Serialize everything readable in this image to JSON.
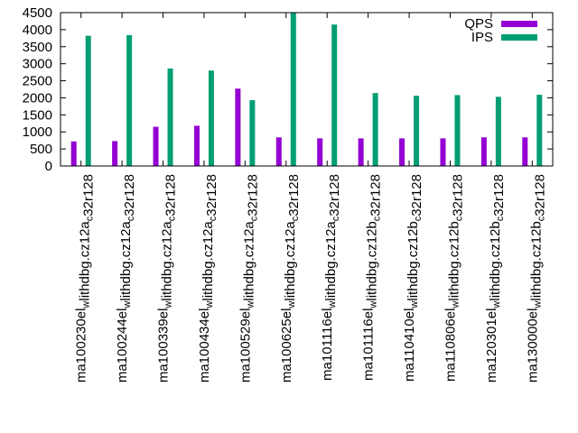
{
  "chart_data": {
    "type": "bar",
    "title": "",
    "xlabel": "",
    "ylabel": "",
    "ylim": [
      0,
      4500
    ],
    "yticks": [
      0,
      500,
      1000,
      1500,
      2000,
      2500,
      3000,
      3500,
      4000,
      4500
    ],
    "grid": false,
    "legend_position": "top-right",
    "categories": [
      {
        "pre": "ma100230",
        "a": "el",
        "b": "lithdbg.cz12a",
        "c": "32r128"
      },
      {
        "pre": "ma100244",
        "a": "el",
        "b": "lithdbg.cz12a",
        "c": "32r128"
      },
      {
        "pre": "ma100339",
        "a": "el",
        "b": "lithdbg.cz12a",
        "c": "32r128"
      },
      {
        "pre": "ma100434",
        "a": "el",
        "b": "lithdbg.cz12a",
        "c": "32r128"
      },
      {
        "pre": "ma100529",
        "a": "el",
        "b": "lithdbg.cz12a",
        "c": "32r128"
      },
      {
        "pre": "ma100625",
        "a": "el",
        "b": "lithdbg.cz12a",
        "c": "32r128"
      },
      {
        "pre": "ma101116",
        "a": "el",
        "b": "lithdbg.cz12a",
        "c": "32r128"
      },
      {
        "pre": "ma101116",
        "a": "el",
        "b": "lithdbg.cz12b",
        "c": "32r128"
      },
      {
        "pre": "ma110410",
        "a": "el",
        "b": "lithdbg.cz12b",
        "c": "32r128"
      },
      {
        "pre": "ma110806",
        "a": "el",
        "b": "lithdbg.cz12b",
        "c": "32r128"
      },
      {
        "pre": "ma120301",
        "a": "el",
        "b": "lithdbg.cz12b",
        "c": "32r128"
      },
      {
        "pre": "ma130000",
        "a": "el",
        "b": "lithdbg.cz12b",
        "c": "32r128"
      }
    ],
    "subscript_char": "w",
    "subscript_char2": "c",
    "series": [
      {
        "name": "QPS",
        "color": "#9400d3",
        "values": [
          720,
          730,
          1150,
          1180,
          2270,
          840,
          810,
          810,
          810,
          810,
          840,
          840
        ]
      },
      {
        "name": "IPS",
        "color": "#009e73",
        "values": [
          3820,
          3840,
          2860,
          2800,
          1930,
          4490,
          4150,
          2140,
          2060,
          2080,
          2030,
          2090
        ]
      }
    ]
  }
}
